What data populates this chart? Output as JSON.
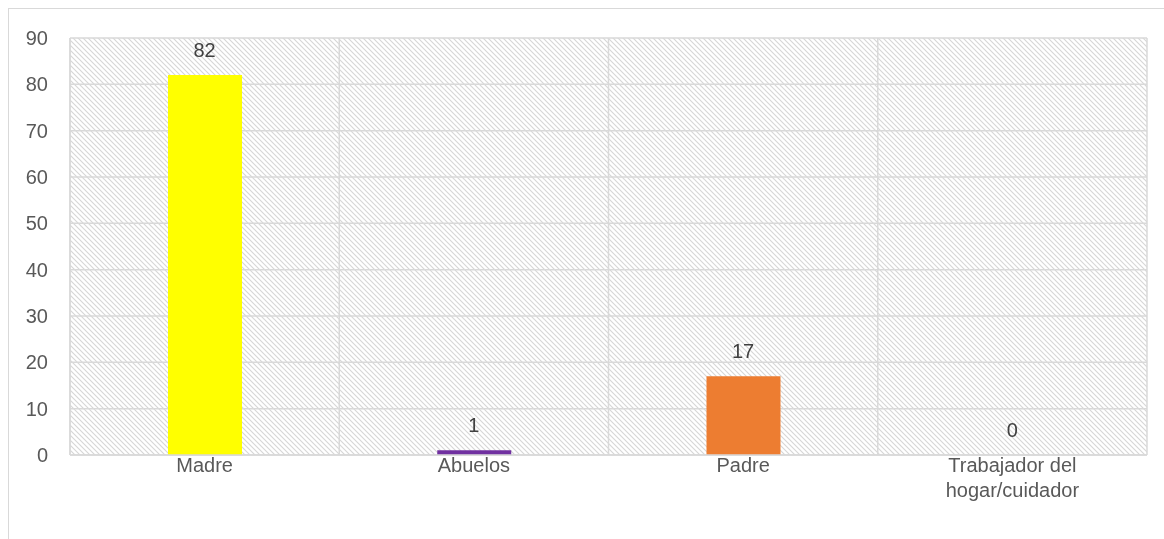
{
  "chart_data": {
    "type": "bar",
    "categories": [
      "Madre",
      "Abuelos",
      "Padre",
      "Trabajador del hogar/cuidador"
    ],
    "values": [
      82,
      1,
      17,
      0
    ],
    "colors": [
      "#ffff00",
      "#7030a0",
      "#ed7d31",
      null
    ],
    "ylim": [
      0,
      90
    ],
    "yticks": [
      0,
      10,
      20,
      30,
      40,
      50,
      60,
      70,
      80,
      90
    ],
    "grid": true,
    "data_labels": true
  }
}
